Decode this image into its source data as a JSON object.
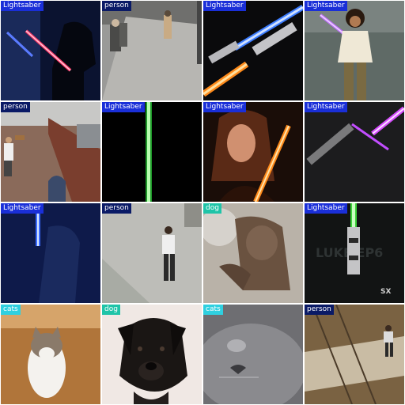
{
  "colors": {
    "lightsaber": "#1a2fd8",
    "person": "#0a1a66",
    "dog": "#1fc4a8",
    "cats": "#2fd0e0"
  },
  "tiles": [
    {
      "label": "Lightsaber",
      "class": "lightsaber"
    },
    {
      "label": "person",
      "class": "person"
    },
    {
      "label": "Lightsaber",
      "class": "lightsaber"
    },
    {
      "label": "Lightsaber",
      "class": "lightsaber"
    },
    {
      "label": "person",
      "class": "person"
    },
    {
      "label": "Lightsaber",
      "class": "lightsaber"
    },
    {
      "label": "Lightsaber",
      "class": "lightsaber"
    },
    {
      "label": "Lightsaber",
      "class": "lightsaber"
    },
    {
      "label": "Lightsaber",
      "class": "lightsaber"
    },
    {
      "label": "person",
      "class": "person"
    },
    {
      "label": "dog",
      "class": "dog"
    },
    {
      "label": "Lightsaber",
      "class": "lightsaber"
    },
    {
      "label": "cats",
      "class": "cats"
    },
    {
      "label": "dog",
      "class": "dog"
    },
    {
      "label": "cats",
      "class": "cats"
    },
    {
      "label": "person",
      "class": "person"
    }
  ]
}
